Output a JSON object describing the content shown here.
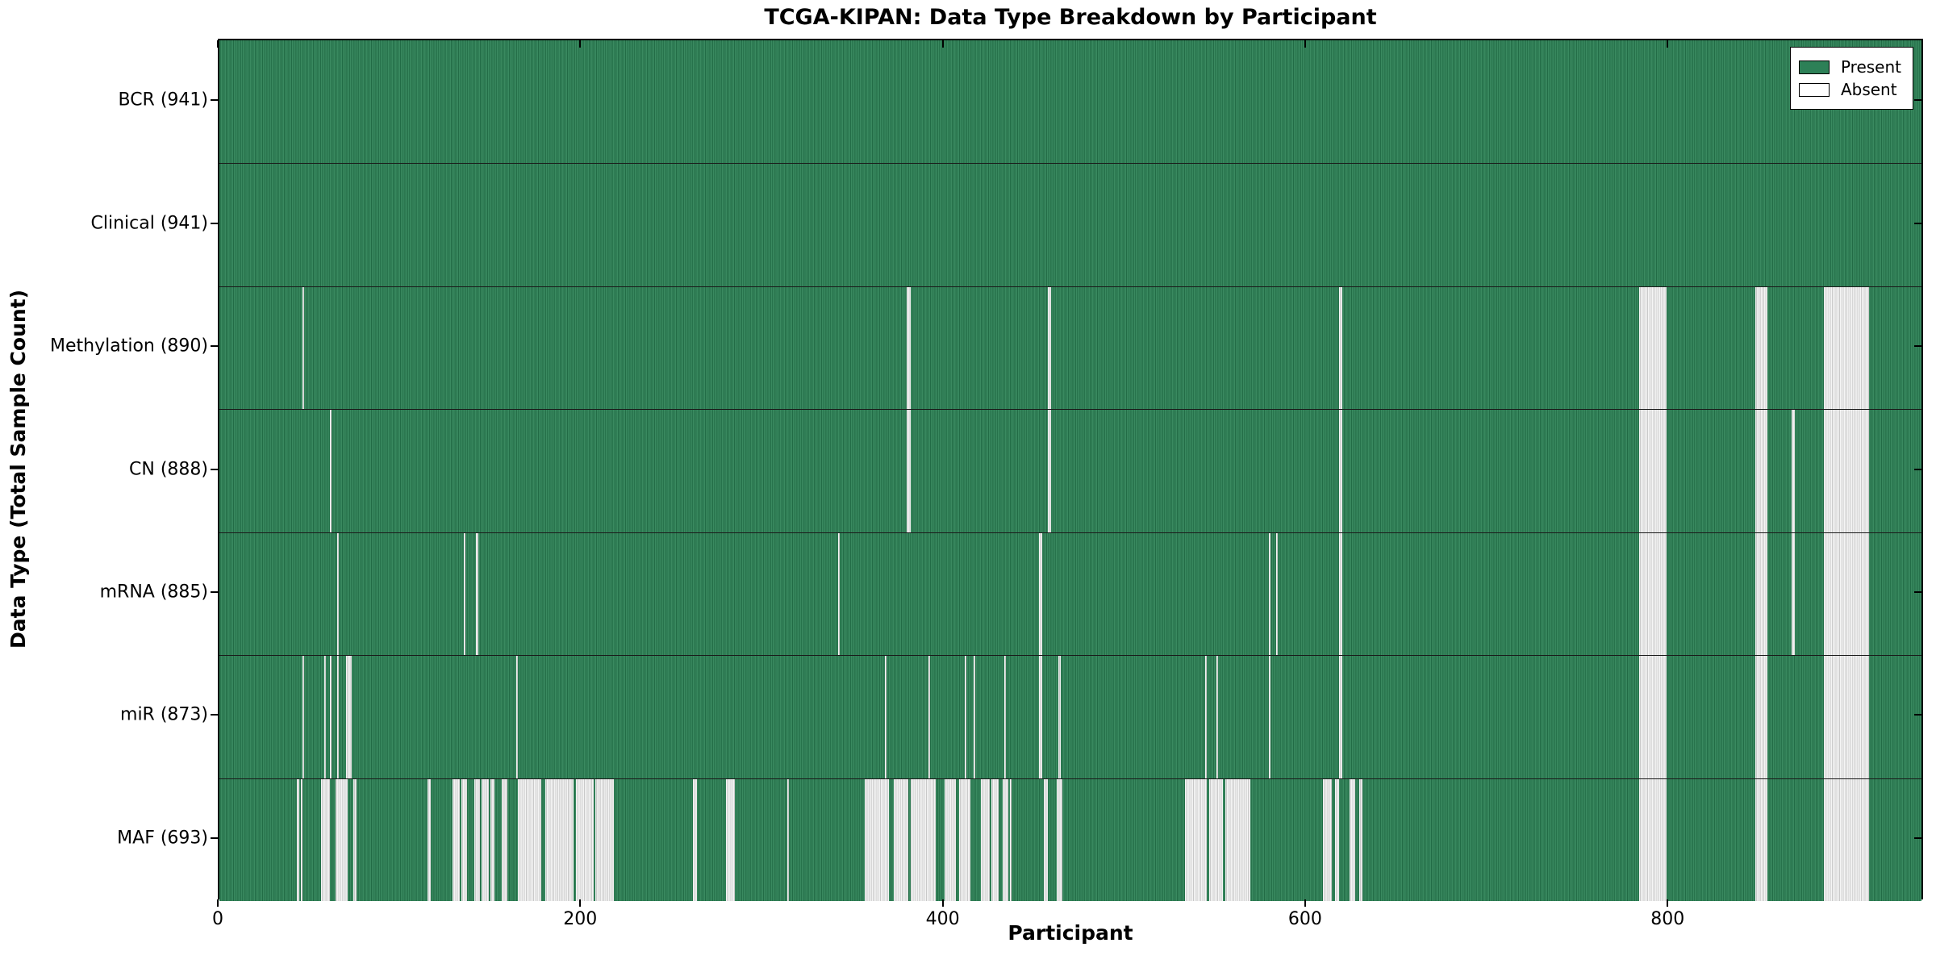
{
  "chart_data": {
    "type": "heatmap",
    "title": "TCGA-KIPAN: Data Type Breakdown by Participant",
    "xlabel": "Participant",
    "ylabel": "Data Type (Total Sample Count)",
    "x_ticks": [
      0,
      200,
      400,
      600,
      800
    ],
    "x_range": [
      0,
      941
    ],
    "grid": false,
    "legend_position": "upper right",
    "legend": [
      {
        "label": "Present",
        "color": "#2d8057"
      },
      {
        "label": "Absent",
        "color": "#ffffff"
      }
    ],
    "colors": {
      "present": "#2d8057",
      "present_stripe": "#1e6541",
      "absent": "#f2f2f2",
      "absent_stripe": "#c9c9c9",
      "plot_border": "#000000",
      "row_divider": "#1a1a1a"
    },
    "rows": [
      {
        "label": "BCR",
        "count": 941,
        "display": "BCR (941)",
        "absent_runs": []
      },
      {
        "label": "Clinical",
        "count": 941,
        "display": "Clinical (941)",
        "absent_runs": []
      },
      {
        "label": "Methylation",
        "count": 890,
        "display": "Methylation (890)",
        "absent_runs": [
          [
            46,
            47
          ],
          [
            380,
            382
          ],
          [
            458,
            460
          ],
          [
            619,
            621
          ],
          [
            785,
            800
          ],
          [
            849,
            856
          ],
          [
            887,
            912
          ]
        ]
      },
      {
        "label": "CN",
        "count": 888,
        "display": "CN (888)",
        "absent_runs": [
          [
            61,
            62
          ],
          [
            380,
            382
          ],
          [
            458,
            460
          ],
          [
            619,
            621
          ],
          [
            785,
            800
          ],
          [
            849,
            856
          ],
          [
            869,
            871
          ],
          [
            887,
            912
          ]
        ]
      },
      {
        "label": "mRNA",
        "count": 885,
        "display": "mRNA (885)",
        "absent_runs": [
          [
            65,
            66
          ],
          [
            135,
            136
          ],
          [
            142,
            143
          ],
          [
            342,
            343
          ],
          [
            453,
            455
          ],
          [
            580,
            581
          ],
          [
            584,
            585
          ],
          [
            619,
            621
          ],
          [
            785,
            800
          ],
          [
            849,
            856
          ],
          [
            869,
            871
          ],
          [
            887,
            912
          ]
        ]
      },
      {
        "label": "miR",
        "count": 873,
        "display": "miR (873)",
        "absent_runs": [
          [
            46,
            47
          ],
          [
            58,
            59
          ],
          [
            61,
            62
          ],
          [
            65,
            66
          ],
          [
            70,
            73
          ],
          [
            164,
            165
          ],
          [
            368,
            369
          ],
          [
            392,
            393
          ],
          [
            412,
            413
          ],
          [
            417,
            418
          ],
          [
            434,
            435
          ],
          [
            453,
            455
          ],
          [
            464,
            465
          ],
          [
            545,
            546
          ],
          [
            551,
            552
          ],
          [
            580,
            581
          ],
          [
            619,
            621
          ],
          [
            785,
            800
          ],
          [
            849,
            856
          ],
          [
            887,
            912
          ]
        ]
      },
      {
        "label": "MAF",
        "count": 693,
        "display": "MAF (693)",
        "absent_runs": [
          [
            43,
            44
          ],
          [
            45,
            46
          ],
          [
            56,
            61
          ],
          [
            64,
            71
          ],
          [
            74,
            76
          ],
          [
            115,
            117
          ],
          [
            129,
            133
          ],
          [
            134,
            137
          ],
          [
            141,
            144
          ],
          [
            145,
            149
          ],
          [
            150,
            152
          ],
          [
            156,
            159
          ],
          [
            165,
            178
          ],
          [
            180,
            196
          ],
          [
            197,
            207
          ],
          [
            208,
            218
          ],
          [
            262,
            264
          ],
          [
            280,
            285
          ],
          [
            314,
            315
          ],
          [
            357,
            370
          ],
          [
            373,
            381
          ],
          [
            382,
            396
          ],
          [
            401,
            407
          ],
          [
            409,
            415
          ],
          [
            421,
            426
          ],
          [
            427,
            431
          ],
          [
            433,
            436
          ],
          [
            437,
            438
          ],
          [
            456,
            458
          ],
          [
            463,
            466
          ],
          [
            534,
            546
          ],
          [
            547,
            555
          ],
          [
            556,
            570
          ],
          [
            610,
            615
          ],
          [
            617,
            619
          ],
          [
            625,
            628
          ],
          [
            630,
            632
          ],
          [
            785,
            800
          ],
          [
            849,
            856
          ],
          [
            887,
            912
          ]
        ]
      }
    ]
  }
}
